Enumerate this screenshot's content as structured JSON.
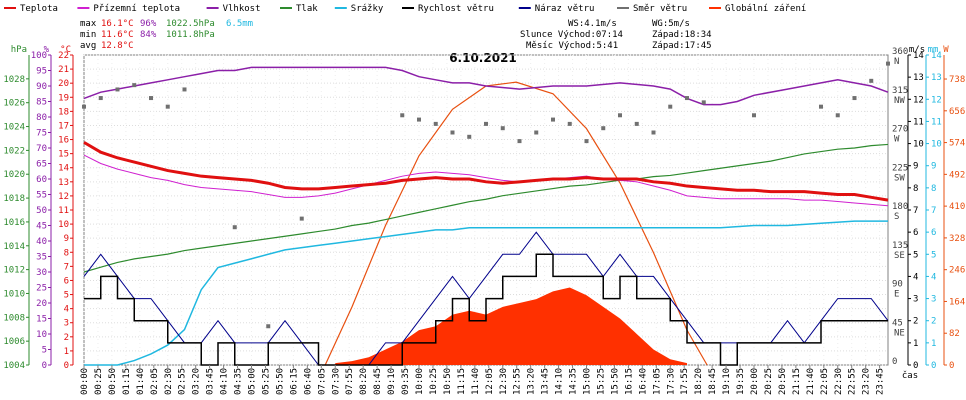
{
  "chart_data": {
    "type": "line",
    "title": "6.10.2021",
    "legend": [
      {
        "name": "Teplota",
        "color": "#e01010"
      },
      {
        "name": "Přízemní teplota",
        "color": "#d020d0"
      },
      {
        "name": "Vlhkost",
        "color": "#8b1fa8"
      },
      {
        "name": "Tlak",
        "color": "#2e8b2e"
      },
      {
        "name": "Srážky",
        "color": "#20b8e0"
      },
      {
        "name": "Rychlost větru",
        "color": "#000000"
      },
      {
        "name": "Náraz větru",
        "color": "#00008b"
      },
      {
        "name": "Směr větru",
        "color": "#707070"
      },
      {
        "name": "Globální záření",
        "color": "#ff3000"
      }
    ],
    "stats": {
      "max": {
        "label": "max",
        "temp": "16.1°C",
        "hum": "96%",
        "press": "1022.5hPa",
        "rain": "6.5mm"
      },
      "min": {
        "label": "min",
        "temp": "11.6°C",
        "hum": "84%",
        "press": "1011.8hPa"
      },
      "avg": {
        "label": "avg",
        "temp": "12.8°C"
      }
    },
    "info": {
      "ws": "WS:4.1m/s",
      "wg": "WG:5m/s",
      "slunce": "Slunce Východ:07:14",
      "slunce_zapad": "Západ:18:34",
      "mesic": "Měsíc Východ:5:41",
      "mesic_zapad": "Západ:17:45"
    },
    "axes": {
      "hpa": {
        "unit": "hPa",
        "ticks": [
          "1004",
          "1006",
          "1008",
          "1010",
          "1012",
          "1014",
          "1016",
          "1018",
          "1020",
          "1022",
          "1024",
          "1026",
          "1028"
        ],
        "range": [
          1004,
          1030
        ]
      },
      "pct": {
        "unit": "%",
        "ticks": [
          "0",
          "5",
          "10",
          "15",
          "20",
          "25",
          "30",
          "35",
          "40",
          "45",
          "50",
          "55",
          "60",
          "65",
          "70",
          "75",
          "80",
          "85",
          "90",
          "95",
          "100"
        ],
        "range": [
          0,
          100
        ]
      },
      "degc": {
        "unit": "°C",
        "ticks": [
          "0",
          "1",
          "2",
          "3",
          "4",
          "5",
          "6",
          "7",
          "8",
          "9",
          "10",
          "11",
          "12",
          "13",
          "14",
          "15",
          "16",
          "17",
          "18",
          "19",
          "20",
          "21",
          "22"
        ],
        "range": [
          0,
          22
        ]
      },
      "ms": {
        "unit": "m/s",
        "ticks": [
          "0",
          "1",
          "2",
          "3",
          "4",
          "5",
          "6",
          "7",
          "8",
          "9",
          "10",
          "11",
          "12",
          "13",
          "14"
        ],
        "range": [
          0,
          14
        ]
      },
      "mm": {
        "unit": "mm",
        "ticks": [
          "0",
          "1",
          "2",
          "3",
          "4",
          "5",
          "6",
          "7",
          "8",
          "9",
          "10",
          "11",
          "12",
          "13",
          "14"
        ],
        "range": [
          0,
          14
        ]
      },
      "wm2": {
        "unit": "W",
        "ticks": [
          "0",
          "82",
          "164",
          "246",
          "328",
          "410",
          "492",
          "574",
          "656",
          "738"
        ],
        "range": [
          0,
          800
        ]
      },
      "dir": {
        "ticks": [
          "0",
          "45",
          "90",
          "135",
          "180",
          "225",
          "270",
          "315",
          "360"
        ],
        "labels": [
          "",
          "NE",
          "E",
          "SE",
          "S",
          "SW",
          "W",
          "NW",
          "N"
        ]
      },
      "time": {
        "unit": "čas",
        "ticks": [
          "00:00",
          "00:25",
          "00:50",
          "01:15",
          "01:40",
          "02:05",
          "02:30",
          "02:55",
          "03:20",
          "03:45",
          "04:10",
          "04:35",
          "05:00",
          "05:25",
          "05:50",
          "06:15",
          "06:40",
          "07:05",
          "07:30",
          "07:55",
          "08:20",
          "08:45",
          "09:10",
          "09:35",
          "10:00",
          "10:25",
          "10:50",
          "11:15",
          "11:40",
          "12:05",
          "12:30",
          "12:55",
          "13:20",
          "13:45",
          "14:10",
          "14:35",
          "15:00",
          "15:25",
          "15:50",
          "16:15",
          "16:40",
          "17:05",
          "17:30",
          "17:55",
          "18:20",
          "18:45",
          "19:10",
          "19:35",
          "20:00",
          "20:25",
          "20:50",
          "21:15",
          "21:40",
          "22:05",
          "22:30",
          "22:55",
          "23:20",
          "23:45"
        ]
      }
    },
    "series": {
      "temperature": {
        "x_hours": [
          0,
          0.5,
          1,
          1.5,
          2,
          2.5,
          3,
          3.5,
          4,
          4.5,
          5,
          5.5,
          6,
          6.5,
          7,
          7.5,
          8,
          8.5,
          9,
          9.5,
          10,
          10.5,
          11,
          11.5,
          12,
          12.5,
          13,
          13.5,
          14,
          14.5,
          15,
          15.5,
          16,
          16.5,
          17,
          17.5,
          18,
          18.5,
          19,
          19.5,
          20,
          20.5,
          21,
          21.5,
          22,
          22.5,
          23,
          23.5,
          24
        ],
        "values": [
          15.8,
          15.1,
          14.7,
          14.4,
          14.1,
          13.8,
          13.6,
          13.4,
          13.3,
          13.2,
          13.1,
          12.9,
          12.6,
          12.5,
          12.5,
          12.6,
          12.7,
          12.8,
          12.9,
          13.1,
          13.2,
          13.3,
          13.2,
          13.2,
          13.0,
          12.9,
          13.0,
          13.1,
          13.2,
          13.2,
          13.3,
          13.2,
          13.2,
          13.2,
          13.0,
          12.9,
          12.7,
          12.6,
          12.5,
          12.4,
          12.4,
          12.3,
          12.3,
          12.3,
          12.2,
          12.1,
          12.1,
          11.9,
          11.7
        ]
      },
      "ground_temperature": {
        "x_hours": [
          0,
          0.5,
          1,
          1.5,
          2,
          2.5,
          3,
          3.5,
          4,
          4.5,
          5,
          5.5,
          6,
          6.5,
          7,
          7.5,
          8,
          8.5,
          9,
          9.5,
          10,
          10.5,
          11,
          11.5,
          12,
          12.5,
          13,
          13.5,
          14,
          14.5,
          15,
          15.5,
          16,
          16.5,
          17,
          17.5,
          18,
          18.5,
          19,
          19.5,
          20,
          20.5,
          21,
          21.5,
          22,
          22.5,
          23,
          23.5,
          24
        ],
        "values": [
          14.9,
          14.3,
          13.9,
          13.6,
          13.3,
          13.1,
          12.8,
          12.6,
          12.5,
          12.4,
          12.3,
          12.1,
          11.9,
          11.9,
          12.0,
          12.2,
          12.5,
          12.8,
          13.1,
          13.4,
          13.6,
          13.7,
          13.6,
          13.5,
          13.3,
          13.1,
          13.0,
          13.1,
          13.2,
          13.3,
          13.4,
          13.2,
          13.1,
          13.0,
          12.7,
          12.4,
          12.0,
          11.9,
          11.8,
          11.8,
          11.8,
          11.8,
          11.8,
          11.7,
          11.7,
          11.6,
          11.5,
          11.4,
          11.3
        ]
      },
      "humidity": {
        "x_hours": [
          0,
          0.5,
          1,
          1.5,
          2,
          2.5,
          3,
          3.5,
          4,
          4.5,
          5,
          6,
          7,
          8,
          9,
          9.5,
          10,
          10.5,
          11,
          11.5,
          12,
          13,
          14,
          15,
          16,
          17,
          17.5,
          18,
          18.5,
          19,
          19.5,
          20,
          21,
          22,
          22.5,
          23,
          23.5,
          24
        ],
        "values": [
          86,
          88,
          89,
          90,
          91,
          92,
          93,
          94,
          95,
          95,
          96,
          96,
          96,
          96,
          96,
          95,
          93,
          92,
          91,
          91,
          90,
          89,
          90,
          90,
          91,
          90,
          89,
          86,
          84,
          84,
          85,
          87,
          89,
          91,
          92,
          91,
          90,
          88
        ]
      },
      "pressure": {
        "x_hours": [
          0,
          0.5,
          1,
          1.5,
          2,
          2.5,
          3,
          3.5,
          4,
          4.5,
          5,
          5.5,
          6,
          6.5,
          7,
          7.5,
          8,
          8.5,
          9,
          9.5,
          10,
          10.5,
          11,
          11.5,
          12,
          12.5,
          13,
          13.5,
          14,
          14.5,
          15,
          15.5,
          16,
          16.5,
          17,
          17.5,
          18,
          18.5,
          19,
          19.5,
          20,
          20.5,
          21,
          21.5,
          22,
          22.5,
          23,
          23.5,
          24
        ],
        "values": [
          1011.8,
          1012.2,
          1012.6,
          1012.9,
          1013.1,
          1013.3,
          1013.6,
          1013.8,
          1014.0,
          1014.2,
          1014.4,
          1014.6,
          1014.8,
          1015.0,
          1015.2,
          1015.4,
          1015.7,
          1015.9,
          1016.2,
          1016.5,
          1016.8,
          1017.1,
          1017.4,
          1017.7,
          1017.9,
          1018.2,
          1018.4,
          1018.6,
          1018.8,
          1019.0,
          1019.1,
          1019.3,
          1019.5,
          1019.6,
          1019.8,
          1019.9,
          1020.1,
          1020.3,
          1020.5,
          1020.7,
          1020.9,
          1021.1,
          1021.4,
          1021.7,
          1021.9,
          1022.1,
          1022.2,
          1022.4,
          1022.5
        ]
      },
      "rain_mm": {
        "x_hours": [
          0,
          0.5,
          1,
          1.5,
          2,
          2.5,
          3,
          3.5,
          4,
          4.5,
          5,
          5.5,
          6,
          6.5,
          7,
          7.5,
          8,
          8.5,
          9,
          9.5,
          10,
          10.5,
          11,
          11.5,
          12,
          13,
          14,
          15,
          16,
          17,
          18,
          19,
          20,
          21,
          22,
          23,
          24
        ],
        "values": [
          0,
          0,
          0,
          0.2,
          0.5,
          0.9,
          1.6,
          3.4,
          4.4,
          4.6,
          4.8,
          5.0,
          5.2,
          5.3,
          5.4,
          5.5,
          5.6,
          5.7,
          5.8,
          5.9,
          6.0,
          6.1,
          6.1,
          6.2,
          6.2,
          6.2,
          6.2,
          6.2,
          6.2,
          6.2,
          6.2,
          6.2,
          6.3,
          6.3,
          6.4,
          6.5,
          6.5
        ]
      },
      "wind_speed": {
        "x_hours": [
          0,
          0.5,
          1,
          1.5,
          2,
          2.5,
          3,
          3.5,
          4,
          4.5,
          5,
          5.5,
          6,
          6.5,
          7,
          7.5,
          8,
          8.5,
          9,
          9.5,
          10,
          10.5,
          11,
          11.5,
          12,
          12.5,
          13,
          13.5,
          14,
          14.5,
          15,
          15.5,
          16,
          16.5,
          17,
          17.5,
          18,
          18.5,
          19,
          19.5,
          20,
          20.5,
          21,
          21.5,
          22,
          22.5,
          23,
          23.5,
          24
        ],
        "values": [
          3,
          4,
          3,
          2,
          2,
          1,
          1,
          0,
          1,
          0,
          0,
          1,
          1,
          1,
          0,
          0,
          0,
          0,
          0,
          1,
          1,
          2,
          3,
          2,
          3,
          4,
          4,
          5,
          4,
          4,
          4,
          3,
          4,
          3,
          3,
          2,
          1,
          1,
          0,
          1,
          1,
          1,
          1,
          1,
          2,
          2,
          2,
          2,
          2
        ]
      },
      "wind_gust": {
        "x_hours": [
          0,
          0.5,
          1,
          1.5,
          2,
          2.5,
          3,
          3.5,
          4,
          4.5,
          5,
          5.5,
          6,
          6.5,
          7,
          7.5,
          8,
          8.5,
          9,
          9.5,
          10,
          10.5,
          11,
          11.5,
          12,
          12.5,
          13,
          13.5,
          14,
          14.5,
          15,
          15.5,
          16,
          16.5,
          17,
          17.5,
          18,
          18.5,
          19,
          19.5,
          20,
          20.5,
          21,
          21.5,
          22,
          22.5,
          23,
          23.5,
          24
        ],
        "values": [
          4,
          5,
          4,
          3,
          3,
          2,
          1,
          1,
          2,
          1,
          1,
          1,
          2,
          1,
          0,
          0,
          0,
          0,
          1,
          1,
          2,
          3,
          4,
          3,
          4,
          5,
          5,
          6,
          5,
          5,
          5,
          4,
          5,
          4,
          4,
          3,
          2,
          1,
          1,
          1,
          1,
          1,
          2,
          1,
          2,
          3,
          3,
          3,
          2
        ]
      },
      "solar_wm2": {
        "x_hours": [
          7.5,
          8,
          8.5,
          9,
          9.5,
          10,
          10.5,
          11,
          11.5,
          12,
          12.5,
          13,
          13.5,
          14,
          14.5,
          15,
          15.5,
          16,
          16.5,
          17,
          17.5,
          18
        ],
        "values": [
          5,
          10,
          20,
          40,
          60,
          90,
          100,
          130,
          140,
          130,
          150,
          160,
          170,
          190,
          200,
          180,
          150,
          120,
          80,
          40,
          15,
          5
        ]
      },
      "solar_theoretical_wm2": {
        "x_hours": [
          7.2,
          8,
          9,
          10,
          11,
          12,
          12.9,
          14,
          15,
          16,
          17,
          18,
          18.6
        ],
        "values": [
          0,
          150,
          360,
          540,
          660,
          720,
          730,
          700,
          610,
          470,
          290,
          90,
          0
        ]
      },
      "wind_direction_deg": {
        "x_hours": [
          0,
          0.5,
          1,
          1.5,
          2,
          2.5,
          3,
          4.5,
          5.5,
          6.5,
          9.5,
          10,
          10.5,
          11,
          11.5,
          12,
          12.5,
          13,
          13.5,
          14,
          14.5,
          15,
          15.5,
          16,
          16.5,
          17,
          17.5,
          18,
          18.5,
          20,
          22,
          22.5,
          23,
          23.5,
          24
        ],
        "values": [
          300,
          310,
          320,
          325,
          310,
          300,
          320,
          160,
          45,
          170,
          290,
          285,
          280,
          270,
          265,
          280,
          275,
          260,
          270,
          285,
          280,
          260,
          275,
          290,
          280,
          270,
          300,
          310,
          305,
          290,
          300,
          290,
          310,
          330,
          350
        ]
      }
    }
  }
}
